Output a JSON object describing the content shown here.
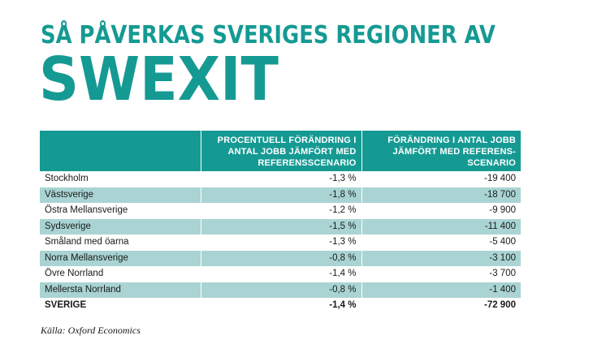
{
  "title": {
    "line1": "SÅ PÅVERKAS SVERIGES REGIONER AV",
    "line2": "SWEXIT"
  },
  "table": {
    "headers": [
      "",
      "PROCENTUELL FÖRÄNDRING I ANTAL JOBB JÄMFÖRT MED REFERENSSCENARIO",
      "FÖRÄNDRING I ANTAL JOBB JÄMFÖRT MED REFERENS-SCENARIO"
    ],
    "rows": [
      {
        "region": "Stockholm",
        "percent": "-1,3 %",
        "jobs": "-19 400"
      },
      {
        "region": "Västsverige",
        "percent": "-1,8 %",
        "jobs": "-18 700"
      },
      {
        "region": "Östra Mellansverige",
        "percent": "-1,2 %",
        "jobs": "-9 900"
      },
      {
        "region": "Sydsverige",
        "percent": "-1,5 %",
        "jobs": "-11 400"
      },
      {
        "region": "Småland med öarna",
        "percent": "-1,3 %",
        "jobs": "-5 400"
      },
      {
        "region": "Norra Mellansverige",
        "percent": "-0,8 %",
        "jobs": "-3 100"
      },
      {
        "region": "Övre Norrland",
        "percent": "-1,4 %",
        "jobs": "-3 700"
      },
      {
        "region": "Mellersta Norrland",
        "percent": "-0,8 %",
        "jobs": "-1 400"
      }
    ],
    "total": {
      "region": "SVERIGE",
      "percent": "-1,4 %",
      "jobs": "-72 900"
    }
  },
  "source": "Källa: Oxford Economics",
  "colors": {
    "accent": "#159a93",
    "row_alt": "#a9d4d3"
  }
}
